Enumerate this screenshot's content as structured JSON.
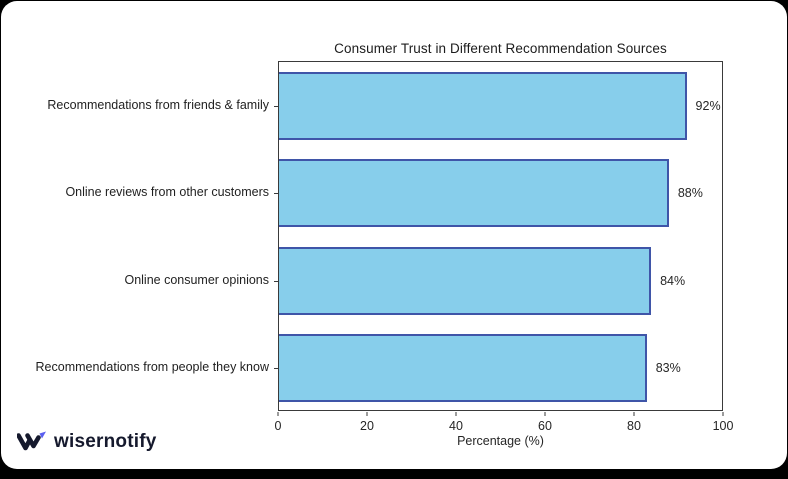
{
  "page": {
    "background": "#000000",
    "card_background": "#ffffff"
  },
  "chart_data": {
    "type": "bar",
    "orientation": "horizontal",
    "title": "Consumer Trust in Different Recommendation Sources",
    "categories": [
      "Recommendations from friends & family",
      "Online reviews from other customers",
      "Online consumer opinions",
      "Recommendations from people they know"
    ],
    "values": [
      92,
      88,
      84,
      83
    ],
    "value_labels": [
      "92%",
      "88%",
      "84%",
      "83%"
    ],
    "xlabel": "Percentage (%)",
    "x_ticks": [
      0,
      20,
      40,
      60,
      80,
      100
    ],
    "xlim": [
      0,
      100
    ],
    "grid": false,
    "legend": null,
    "bar_fill_color": "#87CEEB",
    "bar_edge_color": "#3F55A8"
  },
  "footer": {
    "logo_text": "wisernotify",
    "logo_accent_color": "#5a5ff0",
    "logo_mark_color": "#15192d"
  }
}
